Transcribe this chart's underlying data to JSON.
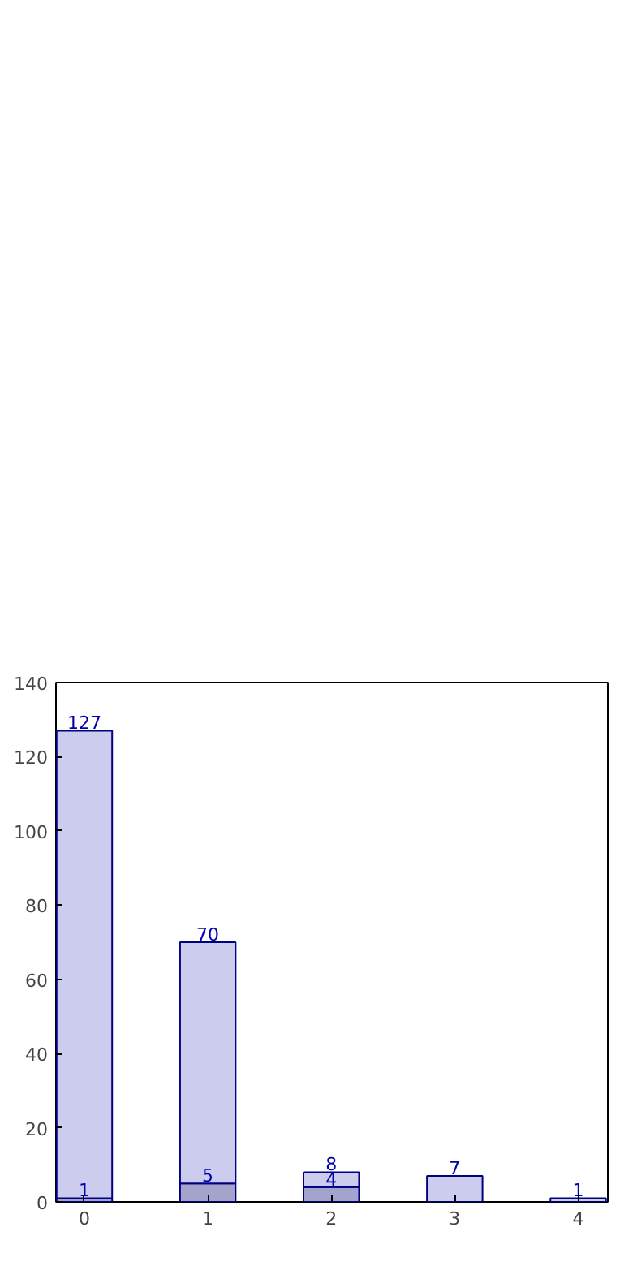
{
  "chart_data": {
    "type": "bar",
    "stacked": true,
    "x": [
      0,
      1,
      2,
      3,
      4
    ],
    "xlim": [
      -0.23,
      4.24
    ],
    "xticks": [
      0,
      1,
      2,
      3,
      4
    ],
    "ylim": [
      0,
      140
    ],
    "yticks": [
      0,
      20,
      40,
      60,
      80,
      100,
      120,
      140
    ],
    "grid": false,
    "series": [
      {
        "color": "#a3a3cc",
        "values": [
          1,
          5,
          4,
          null,
          null
        ],
        "value_labels": [
          "1",
          "5",
          "4",
          null,
          null
        ]
      },
      {
        "color": "#ccccee",
        "values": [
          126,
          65,
          4,
          7,
          1
        ]
      }
    ],
    "totals": [
      "127",
      "70",
      "8",
      "7",
      "1"
    ]
  }
}
